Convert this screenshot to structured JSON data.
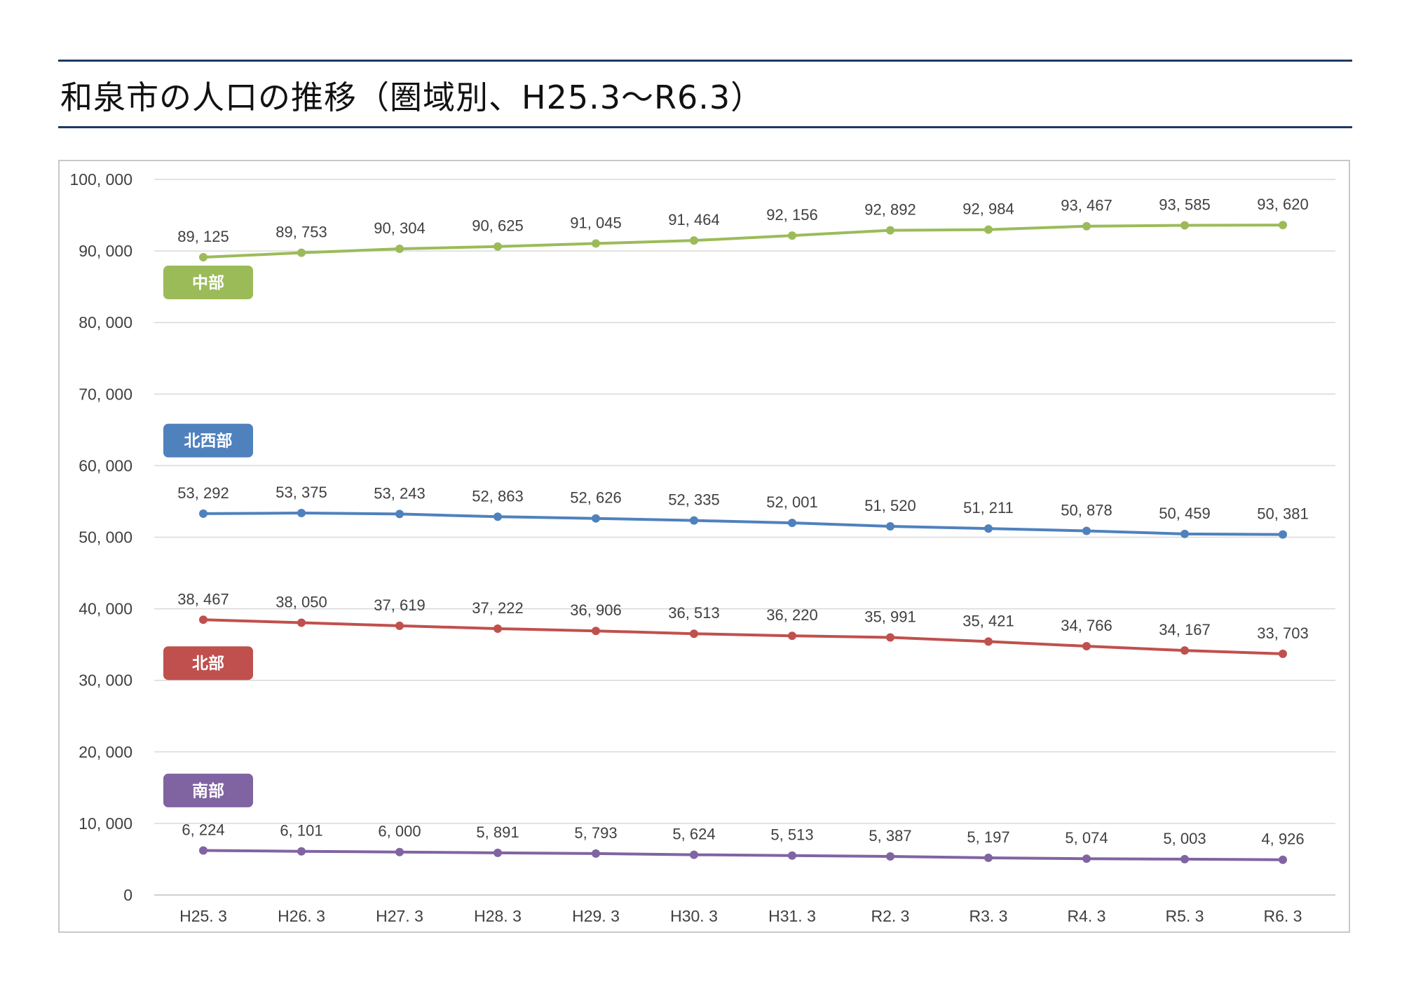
{
  "page": {
    "title": "和泉市の人口の推移（圏域別、H25.3～R6.3）"
  },
  "chart_data": {
    "type": "line",
    "title": "和泉市の人口の推移（圏域別、H25.3～R6.3）",
    "xlabel": "",
    "ylabel": "",
    "ylim": [
      0,
      100000
    ],
    "yticks": [
      0,
      10000,
      20000,
      30000,
      40000,
      50000,
      60000,
      70000,
      80000,
      90000,
      100000
    ],
    "ytick_labels": [
      "0",
      "10, 000",
      "20, 000",
      "30, 000",
      "40, 000",
      "50, 000",
      "60, 000",
      "70, 000",
      "80, 000",
      "90, 000",
      "100, 000"
    ],
    "grid": true,
    "categories": [
      "H25. 3",
      "H26. 3",
      "H27. 3",
      "H28. 3",
      "H29. 3",
      "H30. 3",
      "H31. 3",
      "R2. 3",
      "R3. 3",
      "R4. 3",
      "R5. 3",
      "R6. 3"
    ],
    "series": [
      {
        "name": "中部",
        "color": "#9bbb59",
        "values": [
          89125,
          89753,
          90304,
          90625,
          91045,
          91464,
          92156,
          92892,
          92984,
          93467,
          93585,
          93620
        ],
        "labels": [
          "89, 125",
          "89, 753",
          "90, 304",
          "90, 625",
          "91, 045",
          "91, 464",
          "92, 156",
          "92, 892",
          "92, 984",
          "93, 467",
          "93, 585",
          "93, 620"
        ],
        "badge_value": 85600
      },
      {
        "name": "北西部",
        "color": "#4f81bd",
        "values": [
          53292,
          53375,
          53243,
          52863,
          52626,
          52335,
          52001,
          51520,
          51211,
          50878,
          50459,
          50381
        ],
        "labels": [
          "53, 292",
          "53, 375",
          "53, 243",
          "52, 863",
          "52, 626",
          "52, 335",
          "52, 001",
          "51, 520",
          "51, 211",
          "50, 878",
          "50, 459",
          "50, 381"
        ],
        "badge_value": 63500
      },
      {
        "name": "北部",
        "color": "#c0504d",
        "values": [
          38467,
          38050,
          37619,
          37222,
          36906,
          36513,
          36220,
          35991,
          35421,
          34766,
          34167,
          33703
        ],
        "labels": [
          "38, 467",
          "38, 050",
          "37, 619",
          "37, 222",
          "36, 906",
          "36, 513",
          "36, 220",
          "35, 991",
          "35, 421",
          "34, 766",
          "34, 167",
          "33, 703"
        ],
        "badge_value": 32400
      },
      {
        "name": "南部",
        "color": "#8064a2",
        "values": [
          6224,
          6101,
          6000,
          5891,
          5793,
          5624,
          5513,
          5387,
          5197,
          5074,
          5003,
          4926
        ],
        "labels": [
          "6, 224",
          "6, 101",
          "6, 000",
          "5, 891",
          "5, 793",
          "5, 624",
          "5, 513",
          "5, 387",
          "5, 197",
          "5, 074",
          "5, 003",
          "4, 926"
        ],
        "badge_value": 14600
      }
    ]
  }
}
